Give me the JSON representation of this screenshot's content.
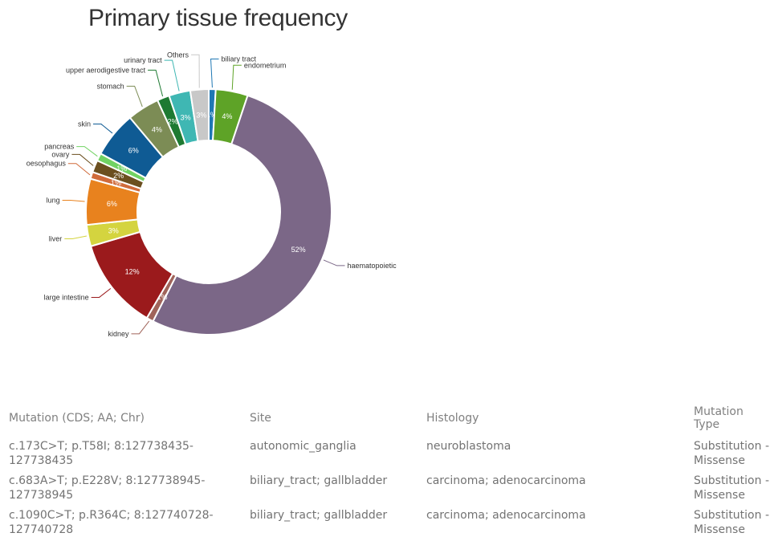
{
  "chart_data": {
    "type": "pie",
    "title": "Primary tissue frequency",
    "slices": [
      {
        "label": "biliary tract",
        "percent_label": "1%",
        "value": 0.9,
        "color": "#1f78b4"
      },
      {
        "label": "endometrium",
        "percent_label": "4%",
        "value": 4.2,
        "color": "#5ea327"
      },
      {
        "label": "haematopoietic",
        "percent_label": "52%",
        "value": 52.0,
        "color": "#7b6787"
      },
      {
        "label": "kidney",
        "percent_label": "1%",
        "value": 0.9,
        "color": "#a0645a"
      },
      {
        "label": "large intestine",
        "percent_label": "12%",
        "value": 12.0,
        "color": "#9b1a1c"
      },
      {
        "label": "liver",
        "percent_label": "3%",
        "value": 2.8,
        "color": "#d4d43f"
      },
      {
        "label": "lung",
        "percent_label": "6%",
        "value": 6.0,
        "color": "#e8821e"
      },
      {
        "label": "oesophagus",
        "percent_label": "1%",
        "value": 0.9,
        "color": "#d06b3b"
      },
      {
        "label": "ovary",
        "percent_label": "2%",
        "value": 1.6,
        "color": "#6b4f1f"
      },
      {
        "label": "pancreas",
        "percent_label": "1%",
        "value": 1.0,
        "color": "#71d263"
      },
      {
        "label": "skin",
        "percent_label": "6%",
        "value": 6.0,
        "color": "#0f5b94"
      },
      {
        "label": "stomach",
        "percent_label": "4%",
        "value": 4.2,
        "color": "#7c8c55"
      },
      {
        "label": "upper aerodigestive tract",
        "percent_label": "2%",
        "value": 1.6,
        "color": "#1e7a32"
      },
      {
        "label": "urinary tract",
        "percent_label": "3%",
        "value": 2.8,
        "color": "#3fb7b3"
      },
      {
        "label": "Others",
        "percent_label": "3%",
        "value": 2.4,
        "color": "#c8c8c8"
      }
    ]
  },
  "table": {
    "headers": [
      "Mutation (CDS; AA; Chr)",
      "Site",
      "Histology",
      "Mutation Type"
    ],
    "rows": [
      {
        "mutation": "c.173C>T; p.T58I; 8:127738435-127738435",
        "site": "autonomic_ganglia",
        "histology": "neuroblastoma",
        "type": "Substitution - Missense"
      },
      {
        "mutation": "c.683A>T; p.E228V; 8:127738945-127738945",
        "site": "biliary_tract; gallbladder",
        "histology": "carcinoma; adenocarcinoma",
        "type": "Substitution - Missense"
      },
      {
        "mutation": "c.1090C>T; p.R364C; 8:127740728-127740728",
        "site": "biliary_tract; gallbladder",
        "histology": "carcinoma; adenocarcinoma",
        "type": "Substitution - Missense"
      }
    ]
  }
}
